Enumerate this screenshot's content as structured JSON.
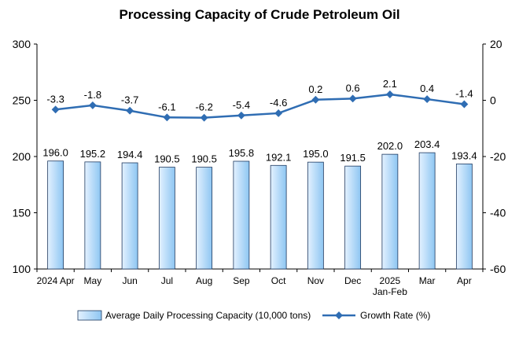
{
  "chart_data": {
    "type": "bar",
    "title": "Processing Capacity of Crude Petroleum Oil",
    "categories": [
      [
        "2024 Apr"
      ],
      [
        "May"
      ],
      [
        "Jun"
      ],
      [
        "Jul"
      ],
      [
        "Aug"
      ],
      [
        "Sep"
      ],
      [
        "Oct"
      ],
      [
        "Nov"
      ],
      [
        "Dec"
      ],
      [
        "2025",
        "Jan-Feb"
      ],
      [
        "Mar"
      ],
      [
        "Apr"
      ]
    ],
    "series": [
      {
        "name": "Average Daily Processing Capacity (10,000 tons)",
        "type": "bar",
        "axis": "left",
        "values": [
          196.0,
          195.2,
          194.4,
          190.5,
          190.5,
          195.8,
          192.1,
          195.0,
          191.5,
          202.0,
          203.4,
          193.4
        ],
        "labels": [
          "196.0",
          "195.2",
          "194.4",
          "190.5",
          "190.5",
          "195.8",
          "192.1",
          "195.0",
          "191.5",
          "202.0",
          "203.4",
          "193.4"
        ]
      },
      {
        "name": "Growth Rate (%)",
        "type": "line",
        "axis": "right",
        "values": [
          -3.3,
          -1.8,
          -3.7,
          -6.1,
          -6.2,
          -5.4,
          -4.6,
          0.2,
          0.6,
          2.1,
          0.4,
          -1.4
        ],
        "labels": [
          "-3.3",
          "-1.8",
          "-3.7",
          "-6.1",
          "-6.2",
          "-5.4",
          "-4.6",
          "0.2",
          "0.6",
          "2.1",
          "0.4",
          "-1.4"
        ]
      }
    ],
    "y_left": {
      "lim": [
        100,
        300
      ],
      "ticks": [
        "100",
        "150",
        "200",
        "250",
        "300"
      ]
    },
    "y_right": {
      "lim": [
        -60,
        20
      ],
      "ticks": [
        "-60",
        "-40",
        "-20",
        "0",
        "20"
      ]
    },
    "grid": false,
    "legend_position": "bottom",
    "colors": {
      "bar_fill_light": "#e3f1ff",
      "bar_fill_dark": "#8ec6f2",
      "bar_stroke": "#1f3a60",
      "line": "#2f6db3",
      "axis": "#000000"
    }
  }
}
